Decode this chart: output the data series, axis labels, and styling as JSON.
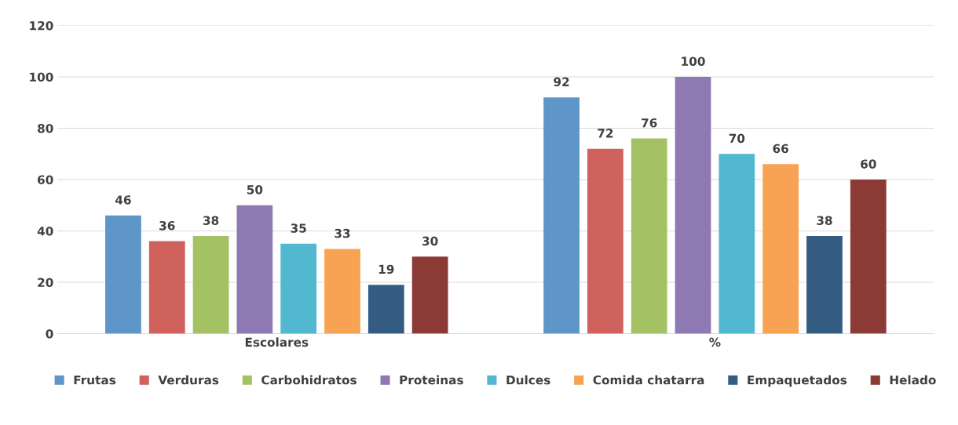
{
  "chart_data": {
    "type": "bar",
    "categories": [
      "Escolares",
      "%"
    ],
    "series": [
      {
        "name": "Frutas",
        "color": "#5f96c9",
        "values": [
          46,
          92
        ]
      },
      {
        "name": "Verduras",
        "color": "#cf625c",
        "values": [
          36,
          72
        ]
      },
      {
        "name": "Carbohidratos",
        "color": "#a4c264",
        "values": [
          38,
          76
        ]
      },
      {
        "name": "Proteinas",
        "color": "#8f79b3",
        "values": [
          50,
          100
        ]
      },
      {
        "name": "Dulces",
        "color": "#52b8cf",
        "values": [
          35,
          70
        ]
      },
      {
        "name": "Comida chatarra",
        "color": "#f8a253",
        "values": [
          33,
          66
        ]
      },
      {
        "name": "Empaquetados",
        "color": "#345c83",
        "values": [
          19,
          38
        ]
      },
      {
        "name": "Helado",
        "color": "#8b3a36",
        "values": [
          30,
          60
        ]
      }
    ],
    "ylim": [
      0,
      120
    ],
    "yticks": [
      0,
      20,
      40,
      60,
      80,
      100,
      120
    ],
    "grid": "y",
    "legend": "bottom",
    "data_labels": true
  }
}
